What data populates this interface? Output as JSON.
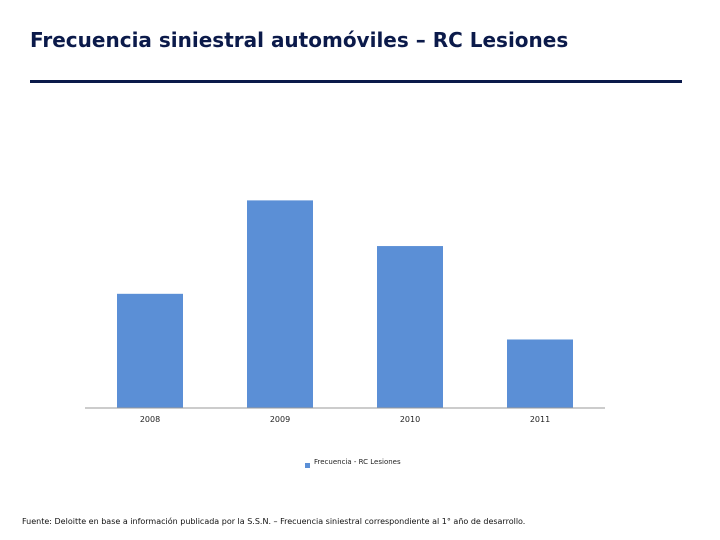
{
  "slide": {
    "title": "Frecuencia siniestral automóviles – RC Lesiones",
    "footer": "Fuente: Deloitte en base a información publicada por la S.S.N. – Frecuencia siniestral correspondiente al 1° año de desarrollo."
  },
  "colors": {
    "title": "#0b1a4a",
    "bar": "#5b8fd6",
    "axis": "#9a9a9a",
    "label": "#222222"
  },
  "chart_data": {
    "type": "bar",
    "categories": [
      "2008",
      "2009",
      "2010",
      "2011"
    ],
    "series": [
      {
        "name": "Frecuencia - RC Lesiones",
        "values": [
          0.55,
          1.0,
          0.78,
          0.33
        ]
      }
    ],
    "ylim": [
      0,
      1.05
    ],
    "grid": false,
    "legend": "bottom"
  }
}
